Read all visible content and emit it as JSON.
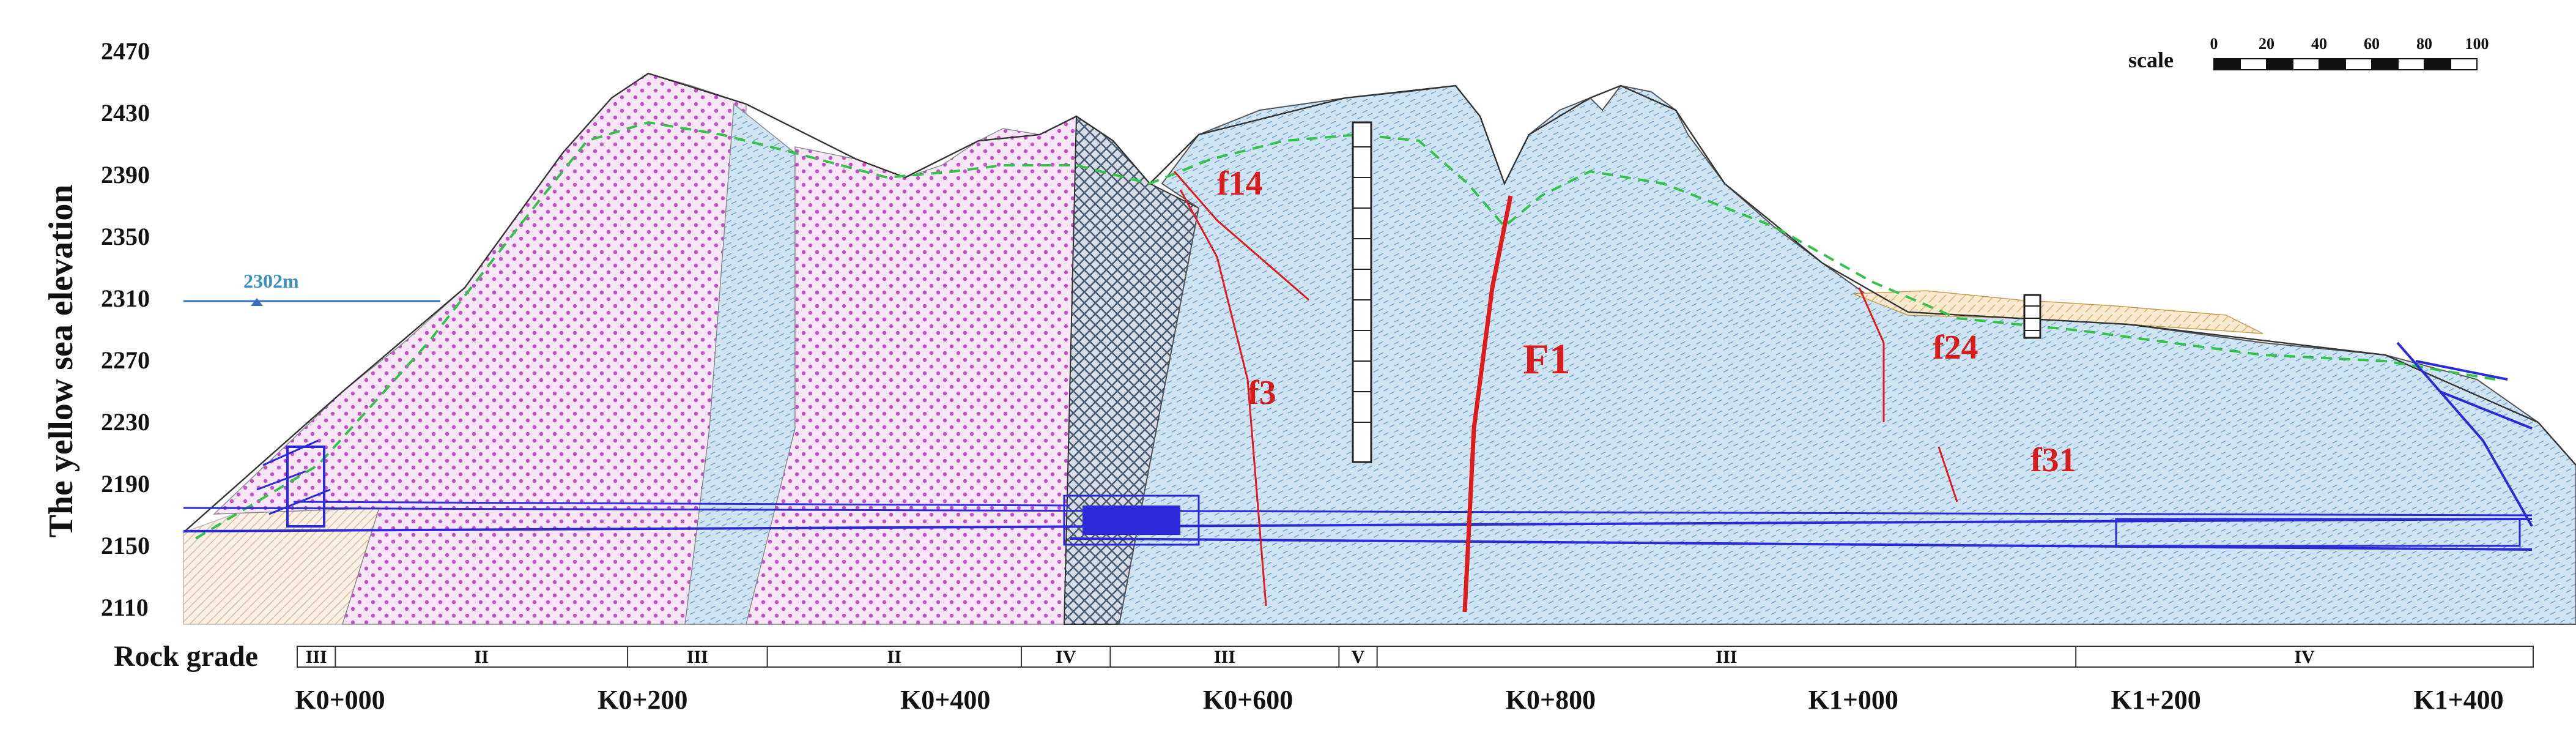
{
  "yaxis": {
    "title": "The yellow sea elevation",
    "ticks": [
      2470,
      2430,
      2390,
      2350,
      2310,
      2270,
      2230,
      2190,
      2150,
      2110
    ]
  },
  "water_level": {
    "label": "2302m",
    "elevation": 2302
  },
  "scale_bar": {
    "label": "scale",
    "ticks": [
      "0",
      "20",
      "40",
      "60",
      "80",
      "100"
    ]
  },
  "faults": [
    {
      "id": "f14",
      "label": "f14"
    },
    {
      "id": "f3",
      "label": "f3"
    },
    {
      "id": "F1",
      "label": "F1"
    },
    {
      "id": "f24",
      "label": "f24"
    },
    {
      "id": "f31",
      "label": "f31"
    }
  ],
  "rock_grade": {
    "title": "Rock grade",
    "segments": [
      {
        "grade": "III",
        "from": 0,
        "to": 0.03
      },
      {
        "grade": "II",
        "from": 0.03,
        "to": 0.26
      },
      {
        "grade": "III",
        "from": 0.26,
        "to": 0.37
      },
      {
        "grade": "II",
        "from": 0.37,
        "to": 0.57
      },
      {
        "grade": "IV",
        "from": 0.57,
        "to": 0.64
      },
      {
        "grade": "III",
        "from": 0.64,
        "to": 0.82
      },
      {
        "grade": "V",
        "from": 0.82,
        "to": 0.85
      },
      {
        "grade": "III",
        "from": 0.85,
        "to": 1.4
      },
      {
        "grade": "IV",
        "from": 1.4,
        "to": 1.76
      }
    ]
  },
  "stations": [
    {
      "label": "K0+000",
      "pos": 0.0
    },
    {
      "label": "K0+200",
      "pos": 0.2
    },
    {
      "label": "K0+400",
      "pos": 0.4
    },
    {
      "label": "K0+600",
      "pos": 0.6
    },
    {
      "label": "K0+800",
      "pos": 0.8
    },
    {
      "label": "K1+000",
      "pos": 1.0
    },
    {
      "label": "K1+200",
      "pos": 1.2
    },
    {
      "label": "K1+400",
      "pos": 1.4
    }
  ],
  "colors": {
    "grade_II": "#d070d6",
    "grade_III": "#bcd9ee",
    "grade_IV": "#5a6e86",
    "overburden": "#f3d9a4",
    "fault_red": "#e01b1b",
    "tunnel_blue": "#2a2ad8",
    "water_blue": "#3a8fc0",
    "weathering_green": "#34c24a"
  }
}
